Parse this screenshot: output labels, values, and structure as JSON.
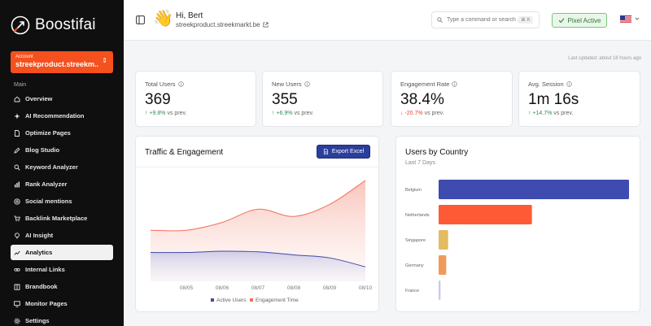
{
  "brand": {
    "name": "Boostifai"
  },
  "account": {
    "label": "Account",
    "value": "streekproduct.streekm..."
  },
  "sidebar": {
    "section_label": "Main",
    "items": [
      {
        "label": "Overview",
        "icon": "home-icon"
      },
      {
        "label": "AI Recommendation",
        "icon": "sparkle-icon"
      },
      {
        "label": "Optimize Pages",
        "icon": "file-icon"
      },
      {
        "label": "Blog Studio",
        "icon": "pen-icon"
      },
      {
        "label": "Keyword Analyzer",
        "icon": "search-icon"
      },
      {
        "label": "Rank Analyzer",
        "icon": "bars-icon"
      },
      {
        "label": "Social mentions",
        "icon": "at-icon"
      },
      {
        "label": "Backlink Marketplace",
        "icon": "cart-icon"
      },
      {
        "label": "AI Insight",
        "icon": "bulb-icon"
      },
      {
        "label": "Analytics",
        "icon": "trend-icon",
        "active": true
      },
      {
        "label": "Internal Links",
        "icon": "link-icon"
      },
      {
        "label": "Brandbook",
        "icon": "book-icon"
      },
      {
        "label": "Monitor Pages",
        "icon": "monitor-icon"
      },
      {
        "label": "Settings",
        "icon": "gear-icon"
      }
    ]
  },
  "header": {
    "greeting": "Hi, Bert",
    "wave_emoji": "👋",
    "site": "streekproduct.streekmarkt.be",
    "search_placeholder": "Type a command or search ...",
    "search_shortcut": "⌘ K",
    "pixel_status": "Pixel Active",
    "flag": "US"
  },
  "last_updated": "Last updated: about 18 hours ago",
  "stats": [
    {
      "label": "Total Users",
      "value": "369",
      "change": "+9.8%",
      "direction": "up",
      "suffix": "vs prev."
    },
    {
      "label": "New Users",
      "value": "355",
      "change": "+6.9%",
      "direction": "up",
      "suffix": "vs prev."
    },
    {
      "label": "Engagement Rate",
      "value": "38.4%",
      "change": "-20.7%",
      "direction": "down",
      "suffix": "vs prev."
    },
    {
      "label": "Avg. Session",
      "value": "1m 16s",
      "change": "+14.7%",
      "direction": "up",
      "suffix": "vs prev."
    }
  ],
  "traffic": {
    "title": "Traffic & Engagement",
    "export_label": "Export Excel"
  },
  "country": {
    "title": "Users by Country",
    "subtitle": "Last 7 Days"
  },
  "colors": {
    "accent": "#f4511e",
    "primary": "#2b3e9b",
    "pixel_green": "#2f7a34"
  },
  "chart_data": [
    {
      "type": "area",
      "title": "Traffic & Engagement",
      "x": [
        "08/05",
        "08/06",
        "08/07",
        "08/08",
        "08/09",
        "08/10"
      ],
      "series": [
        {
          "name": "Active Users",
          "color": "#3f4aa8",
          "values": [
            48,
            50,
            49,
            44,
            39,
            24
          ]
        },
        {
          "name": "Engagement Time",
          "color": "#f2705a",
          "values": [
            85,
            98,
            120,
            108,
            128,
            168
          ]
        }
      ],
      "ylim": [
        0,
        180
      ],
      "legend": "bottom",
      "grid": false
    },
    {
      "type": "bar",
      "orientation": "horizontal",
      "title": "Users by Country",
      "categories": [
        "Belgium",
        "Netherlands",
        "Singapore",
        "Germany",
        "France"
      ],
      "values": [
        100,
        49,
        5,
        4,
        1
      ],
      "colors": [
        "#3e4cb0",
        "#ff5a36",
        "#e3bb62",
        "#f09a5a",
        "#c7c9f0"
      ],
      "xlim": [
        0,
        100
      ],
      "grid": false
    }
  ]
}
